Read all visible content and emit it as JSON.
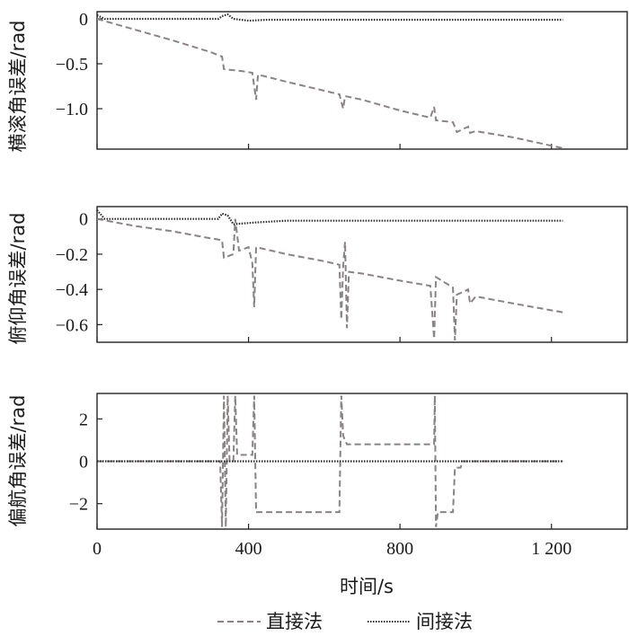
{
  "chart_data": [
    {
      "type": "line",
      "ylabel": "横滚角误差/rad",
      "xlim": [
        0,
        1400
      ],
      "ylim": [
        -1.45,
        0.08
      ],
      "yticks": [
        0,
        -0.5,
        -1.0
      ],
      "ytick_labels": [
        "0",
        "−0.5",
        "−1.0"
      ],
      "grid": false,
      "series": [
        {
          "name": "直接法",
          "style": "dashed",
          "color": "#8a8283",
          "points": [
            [
              0,
              0
            ],
            [
              100,
              -0.12
            ],
            [
              200,
              -0.24
            ],
            [
              300,
              -0.37
            ],
            [
              330,
              -0.42
            ],
            [
              335,
              -0.56
            ],
            [
              380,
              -0.58
            ],
            [
              410,
              -0.6
            ],
            [
              420,
              -0.9
            ],
            [
              425,
              -0.62
            ],
            [
              500,
              -0.7
            ],
            [
              600,
              -0.8
            ],
            [
              640,
              -0.84
            ],
            [
              650,
              -1.0
            ],
            [
              655,
              -0.86
            ],
            [
              700,
              -0.9
            ],
            [
              800,
              -1.02
            ],
            [
              880,
              -1.1
            ],
            [
              890,
              -0.98
            ],
            [
              895,
              -1.13
            ],
            [
              940,
              -1.15
            ],
            [
              950,
              -1.26
            ],
            [
              980,
              -1.2
            ],
            [
              985,
              -1.27
            ],
            [
              1000,
              -1.25
            ],
            [
              1100,
              -1.32
            ],
            [
              1230,
              -1.44
            ]
          ]
        },
        {
          "name": "间接法",
          "style": "dotted",
          "color": "#2b2b2b",
          "points": [
            [
              0,
              0.04
            ],
            [
              20,
              0
            ],
            [
              320,
              0
            ],
            [
              330,
              0.03
            ],
            [
              345,
              0.05
            ],
            [
              360,
              0.0
            ],
            [
              400,
              -0.02
            ],
            [
              450,
              -0.01
            ],
            [
              500,
              -0.01
            ],
            [
              1230,
              -0.01
            ]
          ]
        }
      ]
    },
    {
      "type": "line",
      "ylabel": "俯仰角误差/rad",
      "xlim": [
        0,
        1400
      ],
      "ylim": [
        -0.7,
        0.07
      ],
      "yticks": [
        0,
        -0.2,
        -0.4,
        -0.6
      ],
      "ytick_labels": [
        "0",
        "−0.2",
        "−0.4",
        "−0.6"
      ],
      "grid": false,
      "series": [
        {
          "name": "直接法",
          "style": "dashed",
          "color": "#8a8283",
          "points": [
            [
              0,
              0
            ],
            [
              100,
              -0.04
            ],
            [
              200,
              -0.07
            ],
            [
              300,
              -0.11
            ],
            [
              330,
              -0.12
            ],
            [
              335,
              -0.22
            ],
            [
              360,
              -0.2
            ],
            [
              365,
              0.0
            ],
            [
              375,
              -0.18
            ],
            [
              400,
              -0.16
            ],
            [
              410,
              -0.25
            ],
            [
              415,
              -0.5
            ],
            [
              420,
              -0.16
            ],
            [
              500,
              -0.2
            ],
            [
              600,
              -0.24
            ],
            [
              640,
              -0.26
            ],
            [
              645,
              -0.57
            ],
            [
              650,
              -0.27
            ],
            [
              655,
              -0.13
            ],
            [
              660,
              -0.62
            ],
            [
              665,
              -0.3
            ],
            [
              700,
              -0.31
            ],
            [
              800,
              -0.35
            ],
            [
              880,
              -0.38
            ],
            [
              890,
              -0.68
            ],
            [
              895,
              -0.33
            ],
            [
              940,
              -0.39
            ],
            [
              945,
              -0.69
            ],
            [
              950,
              -0.43
            ],
            [
              980,
              -0.4
            ],
            [
              985,
              -0.48
            ],
            [
              1000,
              -0.44
            ],
            [
              1100,
              -0.48
            ],
            [
              1230,
              -0.53
            ]
          ]
        },
        {
          "name": "间接法",
          "style": "dotted",
          "color": "#2b2b2b",
          "points": [
            [
              0,
              0.05
            ],
            [
              20,
              0
            ],
            [
              320,
              0
            ],
            [
              330,
              0.03
            ],
            [
              345,
              0.02
            ],
            [
              360,
              -0.03
            ],
            [
              420,
              -0.02
            ],
            [
              500,
              -0.01
            ],
            [
              1230,
              -0.01
            ]
          ]
        }
      ]
    },
    {
      "type": "line",
      "ylabel": "偏航角误差/rad",
      "xlabel": "时间/s",
      "xlim": [
        0,
        1400
      ],
      "ylim": [
        -3.2,
        3.2
      ],
      "xticks": [
        0,
        400,
        800,
        1200
      ],
      "xtick_labels": [
        "0",
        "400",
        "800",
        "1 200"
      ],
      "yticks": [
        2,
        0,
        -2
      ],
      "ytick_labels": [
        "2",
        "0",
        "−2"
      ],
      "grid": false,
      "series": [
        {
          "name": "直接法",
          "style": "dashed",
          "color": "#8a8283",
          "points": [
            [
              0,
              0
            ],
            [
              325,
              0
            ],
            [
              330,
              -3.1
            ],
            [
              335,
              3.1
            ],
            [
              340,
              -3.1
            ],
            [
              345,
              3.1
            ],
            [
              350,
              0
            ],
            [
              360,
              0
            ],
            [
              365,
              3.1
            ],
            [
              370,
              0.3
            ],
            [
              410,
              0.3
            ],
            [
              415,
              3.1
            ],
            [
              420,
              -2.4
            ],
            [
              640,
              -2.4
            ],
            [
              645,
              3.1
            ],
            [
              650,
              1.2
            ],
            [
              660,
              0.8
            ],
            [
              890,
              0.8
            ],
            [
              892,
              3.1
            ],
            [
              895,
              -3.1
            ],
            [
              900,
              -2.4
            ],
            [
              940,
              -2.4
            ],
            [
              945,
              -0.3
            ],
            [
              960,
              -0.3
            ],
            [
              965,
              0
            ],
            [
              1230,
              0
            ]
          ]
        },
        {
          "name": "间接法",
          "style": "dotted",
          "color": "#2b2b2b",
          "points": [
            [
              0,
              0
            ],
            [
              1230,
              0
            ]
          ]
        }
      ]
    }
  ],
  "legend": {
    "placement": "bottom",
    "items": [
      {
        "label": "直接法",
        "style": "dashed",
        "color": "#8a8283"
      },
      {
        "label": "间接法",
        "style": "dotted",
        "color": "#2b2b2b"
      }
    ]
  }
}
